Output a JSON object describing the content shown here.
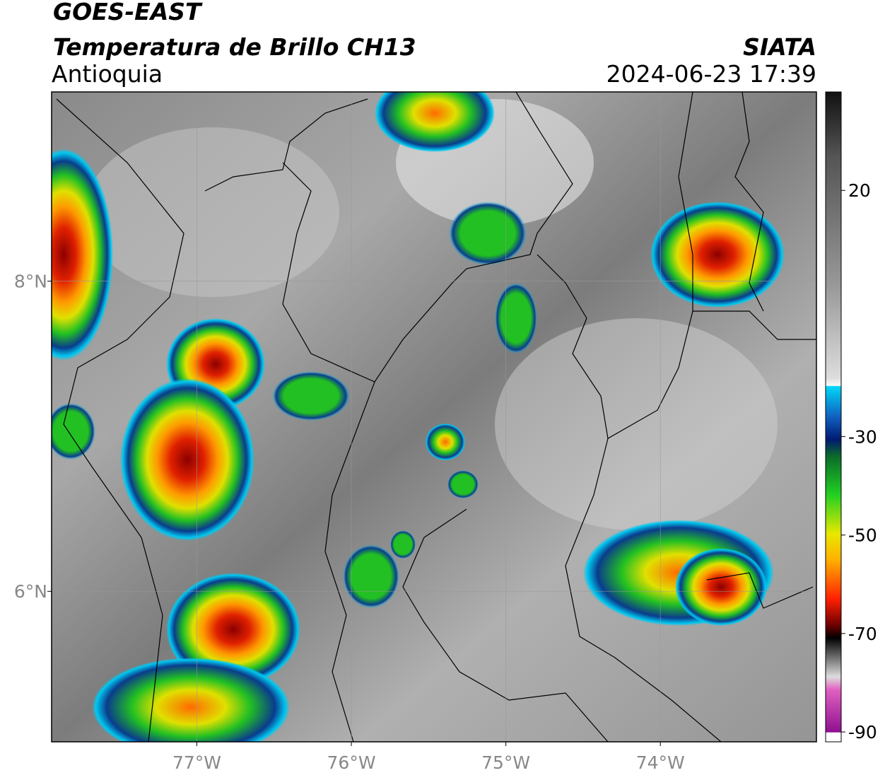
{
  "header": {
    "title": "GOES-EAST",
    "subtitle": "Temperatura de Brillo CH13",
    "region": "Antioquia",
    "source": "SIATA",
    "datetime": "2024-06-23 17:39"
  },
  "map": {
    "xlim": [
      -77.94,
      -72.99
    ],
    "ylim": [
      5.03,
      9.22
    ],
    "xticks": [
      {
        "value": -77,
        "label": "77°W"
      },
      {
        "value": -76,
        "label": "76°W"
      },
      {
        "value": -75,
        "label": "75°W"
      },
      {
        "value": -74,
        "label": "74°W"
      }
    ],
    "yticks": [
      {
        "value": 6,
        "label": "6°N"
      },
      {
        "value": 8,
        "label": "8°N"
      }
    ],
    "grid": true
  },
  "colorbar": {
    "lim": [
      -92,
      40
    ],
    "ticks": [
      20,
      -30,
      -50,
      -70,
      -90
    ]
  }
}
